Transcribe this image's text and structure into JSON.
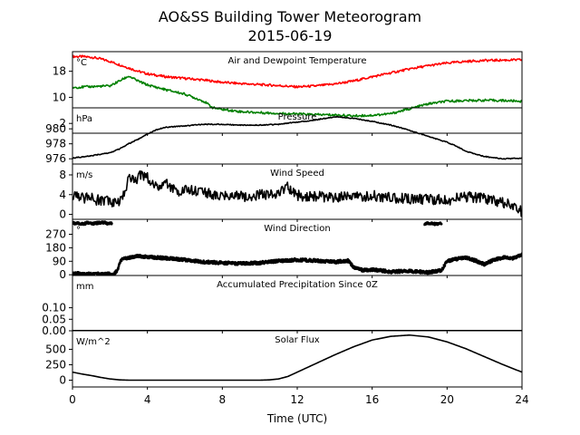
{
  "figure": {
    "title_line1": "AO&SS Building Tower Meteorogram",
    "title_line2": "2015-06-19",
    "xlabel": "Time (UTC)"
  },
  "chart_data": [
    {
      "type": "line",
      "title": "Air and Dewpoint Temperature",
      "unit": "°C",
      "xlim": [
        0,
        24
      ],
      "ylim": [
        -1,
        24
      ],
      "yticks": [
        2,
        10,
        18
      ],
      "series": [
        {
          "color": "#ff0000",
          "x": [
            0,
            0.5,
            1,
            1.5,
            2,
            2.5,
            3,
            3.5,
            4,
            5,
            6,
            7,
            8,
            9,
            10,
            11,
            12,
            13,
            14,
            15,
            16,
            17,
            18,
            19,
            20,
            21,
            22,
            23,
            24
          ],
          "y": [
            22.5,
            22.5,
            22.3,
            21.8,
            21,
            20,
            19,
            18,
            17.2,
            16.3,
            15.8,
            15.3,
            14.6,
            14.2,
            13.9,
            13.6,
            13.2,
            13.5,
            14.1,
            15,
            16.3,
            17.5,
            18.7,
            19.7,
            20.5,
            21,
            21.3,
            21.4,
            21.5
          ]
        },
        {
          "color": "#008000",
          "x": [
            0,
            1,
            2,
            2.5,
            3,
            3.5,
            4,
            5,
            6,
            7,
            7.5,
            8,
            9,
            10,
            11,
            12,
            13,
            14,
            15,
            16,
            17,
            18,
            19,
            20,
            21,
            22,
            23,
            24
          ],
          "y": [
            13,
            13.3,
            13.5,
            15,
            16.5,
            15,
            13.8,
            12.3,
            11,
            8.8,
            6.8,
            6.3,
            5.6,
            5.3,
            5.1,
            4.9,
            4.7,
            4.6,
            4.3,
            4.5,
            5,
            6.5,
            8,
            8.8,
            9,
            9.1,
            9,
            8.8
          ]
        }
      ]
    },
    {
      "type": "line",
      "title": "Pressure",
      "unit": "hPa",
      "xlim": [
        0,
        24
      ],
      "ylim": [
        975.3,
        982.8
      ],
      "yticks": [
        976,
        978,
        980
      ],
      "series": [
        {
          "color": "#000000",
          "x": [
            0,
            1,
            2,
            2.5,
            3,
            3.5,
            4,
            4.5,
            5,
            6,
            7,
            8,
            9,
            10,
            11,
            12,
            13,
            13.5,
            14,
            15,
            16,
            17,
            18,
            19,
            20,
            20.5,
            21,
            22,
            23,
            24
          ],
          "y": [
            976.1,
            976.4,
            976.8,
            977.3,
            978,
            978.6,
            979.3,
            979.9,
            980.2,
            980.4,
            980.6,
            980.6,
            980.5,
            980.5,
            980.6,
            980.9,
            981.2,
            981.4,
            981.6,
            981.4,
            981,
            980.5,
            979.8,
            979,
            978.2,
            977.7,
            977,
            976.3,
            976,
            976.1
          ]
        }
      ]
    },
    {
      "type": "line",
      "title": "Wind Speed",
      "unit": "m/s",
      "xlim": [
        0,
        24
      ],
      "ylim": [
        -1,
        10.2
      ],
      "yticks": [
        0,
        4,
        8
      ],
      "series": [
        {
          "color": "#000000",
          "x": [
            0,
            0.5,
            1,
            1.5,
            2,
            2.5,
            2.8,
            3,
            3.3,
            3.6,
            4,
            4.5,
            5,
            5.5,
            6,
            7,
            8,
            9,
            10,
            11,
            11.5,
            12,
            13,
            14,
            15,
            16,
            17,
            18,
            19,
            20,
            21,
            22,
            23,
            23.5,
            24
          ],
          "y": [
            4,
            3.4,
            3.2,
            2.8,
            2.6,
            2.6,
            4.5,
            7.8,
            6.5,
            8.2,
            7.5,
            5.5,
            6.5,
            4.5,
            5,
            4.5,
            3.8,
            3.6,
            4,
            4.2,
            5.5,
            3.8,
            3.7,
            3.5,
            3.6,
            3.8,
            3.4,
            3,
            3,
            2.9,
            3.5,
            3.3,
            2.3,
            1.8,
            0.5
          ]
        }
      ]
    },
    {
      "type": "scatter",
      "title": "Wind Direction",
      "unit": "°",
      "xlim": [
        0,
        24
      ],
      "ylim": [
        -5,
        370
      ],
      "yticks": [
        0,
        90,
        180,
        270
      ],
      "series": [
        {
          "color": "#000000",
          "x": [
            0,
            0.3,
            0.6,
            0.8,
            1,
            1.3,
            1.6,
            1.9,
            2.1,
            18.8,
            19.1,
            19.4,
            19.7
          ],
          "y": [
            345,
            342,
            338,
            348,
            340,
            345,
            350,
            342,
            345,
            340,
            343,
            338,
            341
          ]
        },
        {
          "color": "#000000",
          "x": [
            0,
            0.3,
            0.6,
            0.8,
            2.2,
            2.4,
            2.6,
            3,
            3.5,
            4,
            5,
            6,
            7,
            8,
            9,
            10,
            11,
            12,
            13,
            14,
            14.7,
            15,
            15.5,
            16,
            17,
            18,
            19,
            19.7,
            20,
            20.5,
            21,
            21.5,
            22,
            22.5,
            23,
            23.5,
            24
          ],
          "y": [
            10,
            8,
            6,
            5,
            5,
            30,
            100,
            115,
            125,
            120,
            110,
            100,
            85,
            80,
            75,
            80,
            92,
            100,
            95,
            85,
            95,
            50,
            30,
            35,
            20,
            25,
            15,
            30,
            90,
            105,
            115,
            95,
            70,
            100,
            115,
            110,
            135
          ]
        }
      ]
    },
    {
      "type": "line",
      "title": "Accumulated Precipitation Since 0Z",
      "unit": "mm",
      "xlim": [
        0,
        24
      ],
      "ylim": [
        0,
        0.24
      ],
      "yticks": [
        0.0,
        0.05,
        0.1
      ],
      "ytick_labels": [
        "0.00",
        "0.05",
        "0.10"
      ],
      "series": [
        {
          "color": "#000000",
          "x": [
            0,
            24
          ],
          "y": [
            0,
            0
          ]
        }
      ]
    },
    {
      "type": "line",
      "title": "Solar Flux",
      "unit": "W/m^2",
      "xlim": [
        0,
        24
      ],
      "ylim": [
        -110,
        800
      ],
      "yticks": [
        0,
        250,
        500
      ],
      "series": [
        {
          "color": "#000000",
          "x": [
            0,
            0.5,
            1,
            1.5,
            2,
            2.5,
            3,
            4,
            6,
            8,
            10,
            10.5,
            11,
            11.5,
            12,
            13,
            14,
            15,
            16,
            17,
            18,
            19,
            20,
            21,
            22,
            23,
            24
          ],
          "y": [
            130,
            100,
            75,
            45,
            20,
            5,
            0,
            0,
            0,
            0,
            0,
            5,
            20,
            60,
            130,
            270,
            410,
            540,
            650,
            710,
            730,
            700,
            620,
            510,
            380,
            250,
            130
          ]
        }
      ]
    }
  ],
  "xaxis": {
    "ticks": [
      0,
      4,
      8,
      12,
      16,
      20,
      24
    ]
  }
}
